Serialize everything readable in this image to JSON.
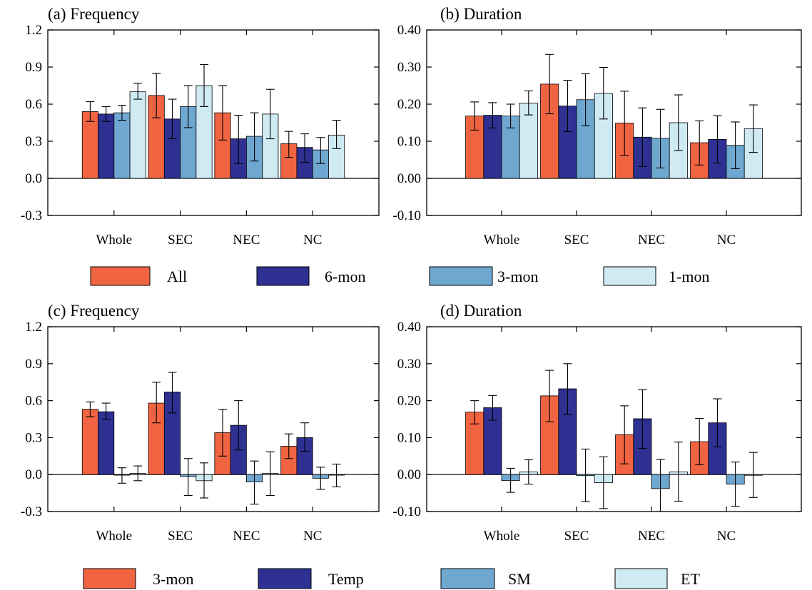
{
  "colors": {
    "orange": "#f16441",
    "navy": "#2e3192",
    "blue": "#6ea8d0",
    "light": "#cfeaf2"
  },
  "legends": [
    {
      "items": [
        {
          "label": "All",
          "color": "#f16441"
        },
        {
          "label": "6-mon",
          "color": "#2e3192"
        },
        {
          "label": "3-mon",
          "color": "#6ea8d0"
        },
        {
          "label": "1-mon",
          "color": "#cfeaf2"
        }
      ]
    },
    {
      "items": [
        {
          "label": "3-mon",
          "color": "#f16441"
        },
        {
          "label": "Temp",
          "color": "#2e3192"
        },
        {
          "label": "SM",
          "color": "#6ea8d0"
        },
        {
          "label": "ET",
          "color": "#cfeaf2"
        }
      ]
    }
  ],
  "chart_data": [
    {
      "type": "bar",
      "title": "(a) Frequency",
      "categories": [
        "Whole",
        "SEC",
        "NEC",
        "NC"
      ],
      "ylim": [
        -0.3,
        1.2
      ],
      "yticks": [
        -0.3,
        0.0,
        0.3,
        0.6,
        0.9,
        1.2
      ],
      "ytick_labels": [
        "-0.3",
        "0.0",
        "0.3",
        "0.6",
        "0.9",
        "1.2"
      ],
      "series": [
        {
          "name": "All",
          "color": "#f16441",
          "values": [
            0.54,
            0.67,
            0.53,
            0.28
          ],
          "err_low": [
            0.46,
            0.49,
            0.31,
            0.17
          ],
          "err_high": [
            0.62,
            0.85,
            0.75,
            0.38
          ]
        },
        {
          "name": "6-mon",
          "color": "#2e3192",
          "values": [
            0.52,
            0.48,
            0.32,
            0.25
          ],
          "err_low": [
            0.46,
            0.32,
            0.12,
            0.13
          ],
          "err_high": [
            0.58,
            0.64,
            0.51,
            0.36
          ]
        },
        {
          "name": "3-mon",
          "color": "#6ea8d0",
          "values": [
            0.53,
            0.58,
            0.34,
            0.23
          ],
          "err_low": [
            0.47,
            0.41,
            0.14,
            0.12
          ],
          "err_high": [
            0.59,
            0.75,
            0.53,
            0.33
          ]
        },
        {
          "name": "1-mon",
          "color": "#cfeaf2",
          "values": [
            0.7,
            0.75,
            0.52,
            0.35
          ],
          "err_low": [
            0.64,
            0.58,
            0.32,
            0.24
          ],
          "err_high": [
            0.77,
            0.92,
            0.72,
            0.47
          ]
        }
      ]
    },
    {
      "type": "bar",
      "title": "(b) Duration",
      "categories": [
        "Whole",
        "SEC",
        "NEC",
        "NC"
      ],
      "ylim": [
        -0.1,
        0.4
      ],
      "yticks": [
        -0.1,
        0.0,
        0.1,
        0.2,
        0.3,
        0.4
      ],
      "ytick_labels": [
        "-0.10",
        "0.00",
        "0.10",
        "0.20",
        "0.30",
        "0.40"
      ],
      "series": [
        {
          "name": "All",
          "color": "#f16441",
          "values": [
            0.168,
            0.254,
            0.149,
            0.096
          ],
          "err_low": [
            0.13,
            0.174,
            0.062,
            0.036
          ],
          "err_high": [
            0.206,
            0.334,
            0.235,
            0.155
          ]
        },
        {
          "name": "6-mon",
          "color": "#2e3192",
          "values": [
            0.17,
            0.195,
            0.111,
            0.105
          ],
          "err_low": [
            0.136,
            0.126,
            0.032,
            0.041
          ],
          "err_high": [
            0.204,
            0.264,
            0.19,
            0.169
          ]
        },
        {
          "name": "3-mon",
          "color": "#6ea8d0",
          "values": [
            0.168,
            0.212,
            0.108,
            0.089
          ],
          "err_low": [
            0.136,
            0.142,
            0.028,
            0.026
          ],
          "err_high": [
            0.2,
            0.282,
            0.186,
            0.152
          ]
        },
        {
          "name": "1-mon",
          "color": "#cfeaf2",
          "values": [
            0.203,
            0.229,
            0.15,
            0.134
          ],
          "err_low": [
            0.171,
            0.16,
            0.075,
            0.07
          ],
          "err_high": [
            0.236,
            0.299,
            0.225,
            0.198
          ]
        }
      ]
    },
    {
      "type": "bar",
      "title": "(c) Frequency",
      "categories": [
        "Whole",
        "SEC",
        "NEC",
        "NC"
      ],
      "ylim": [
        -0.3,
        1.2
      ],
      "yticks": [
        -0.3,
        0.0,
        0.3,
        0.6,
        0.9,
        1.2
      ],
      "ytick_labels": [
        "-0.3",
        "0.0",
        "0.3",
        "0.6",
        "0.9",
        "1.2"
      ],
      "series": [
        {
          "name": "3-mon",
          "color": "#f16441",
          "values": [
            0.53,
            0.58,
            0.34,
            0.23
          ],
          "err_low": [
            0.47,
            0.42,
            0.15,
            0.13
          ],
          "err_high": [
            0.59,
            0.75,
            0.53,
            0.33
          ]
        },
        {
          "name": "Temp",
          "color": "#2e3192",
          "values": [
            0.51,
            0.67,
            0.4,
            0.3
          ],
          "err_low": [
            0.45,
            0.5,
            0.2,
            0.19
          ],
          "err_high": [
            0.58,
            0.83,
            0.6,
            0.42
          ]
        },
        {
          "name": "SM",
          "color": "#6ea8d0",
          "values": [
            -0.005,
            -0.015,
            -0.06,
            -0.03
          ],
          "err_low": [
            -0.07,
            -0.17,
            -0.24,
            -0.12
          ],
          "err_high": [
            0.055,
            0.13,
            0.11,
            0.06
          ]
        },
        {
          "name": "ET",
          "color": "#cfeaf2",
          "values": [
            0.01,
            -0.05,
            0.01,
            -0.005
          ],
          "err_low": [
            -0.05,
            -0.19,
            -0.17,
            -0.1
          ],
          "err_high": [
            0.07,
            0.095,
            0.185,
            0.085
          ]
        }
      ]
    },
    {
      "type": "bar",
      "title": "(d) Duration",
      "categories": [
        "Whole",
        "SEC",
        "NEC",
        "NC"
      ],
      "ylim": [
        -0.1,
        0.4
      ],
      "yticks": [
        -0.1,
        0.0,
        0.1,
        0.2,
        0.3,
        0.4
      ],
      "ytick_labels": [
        "-0.10",
        "0.00",
        "0.10",
        "0.20",
        "0.30",
        "0.40"
      ],
      "series": [
        {
          "name": "3-mon",
          "color": "#f16441",
          "values": [
            0.169,
            0.213,
            0.108,
            0.089
          ],
          "err_low": [
            0.137,
            0.143,
            0.029,
            0.027
          ],
          "err_high": [
            0.2,
            0.282,
            0.186,
            0.152
          ]
        },
        {
          "name": "Temp",
          "color": "#2e3192",
          "values": [
            0.181,
            0.232,
            0.151,
            0.14
          ],
          "err_low": [
            0.147,
            0.163,
            0.071,
            0.075
          ],
          "err_high": [
            0.214,
            0.3,
            0.23,
            0.205
          ]
        },
        {
          "name": "SM",
          "color": "#6ea8d0",
          "values": [
            -0.016,
            -0.003,
            -0.038,
            -0.026
          ],
          "err_low": [
            -0.048,
            -0.073,
            -0.1,
            -0.086
          ],
          "err_high": [
            0.017,
            0.069,
            0.041,
            0.034
          ]
        },
        {
          "name": "ET",
          "color": "#cfeaf2",
          "values": [
            0.007,
            -0.022,
            0.007,
            -0.002
          ],
          "err_low": [
            -0.026,
            -0.092,
            -0.072,
            -0.062
          ],
          "err_high": [
            0.04,
            0.048,
            0.088,
            0.06
          ]
        }
      ]
    }
  ]
}
